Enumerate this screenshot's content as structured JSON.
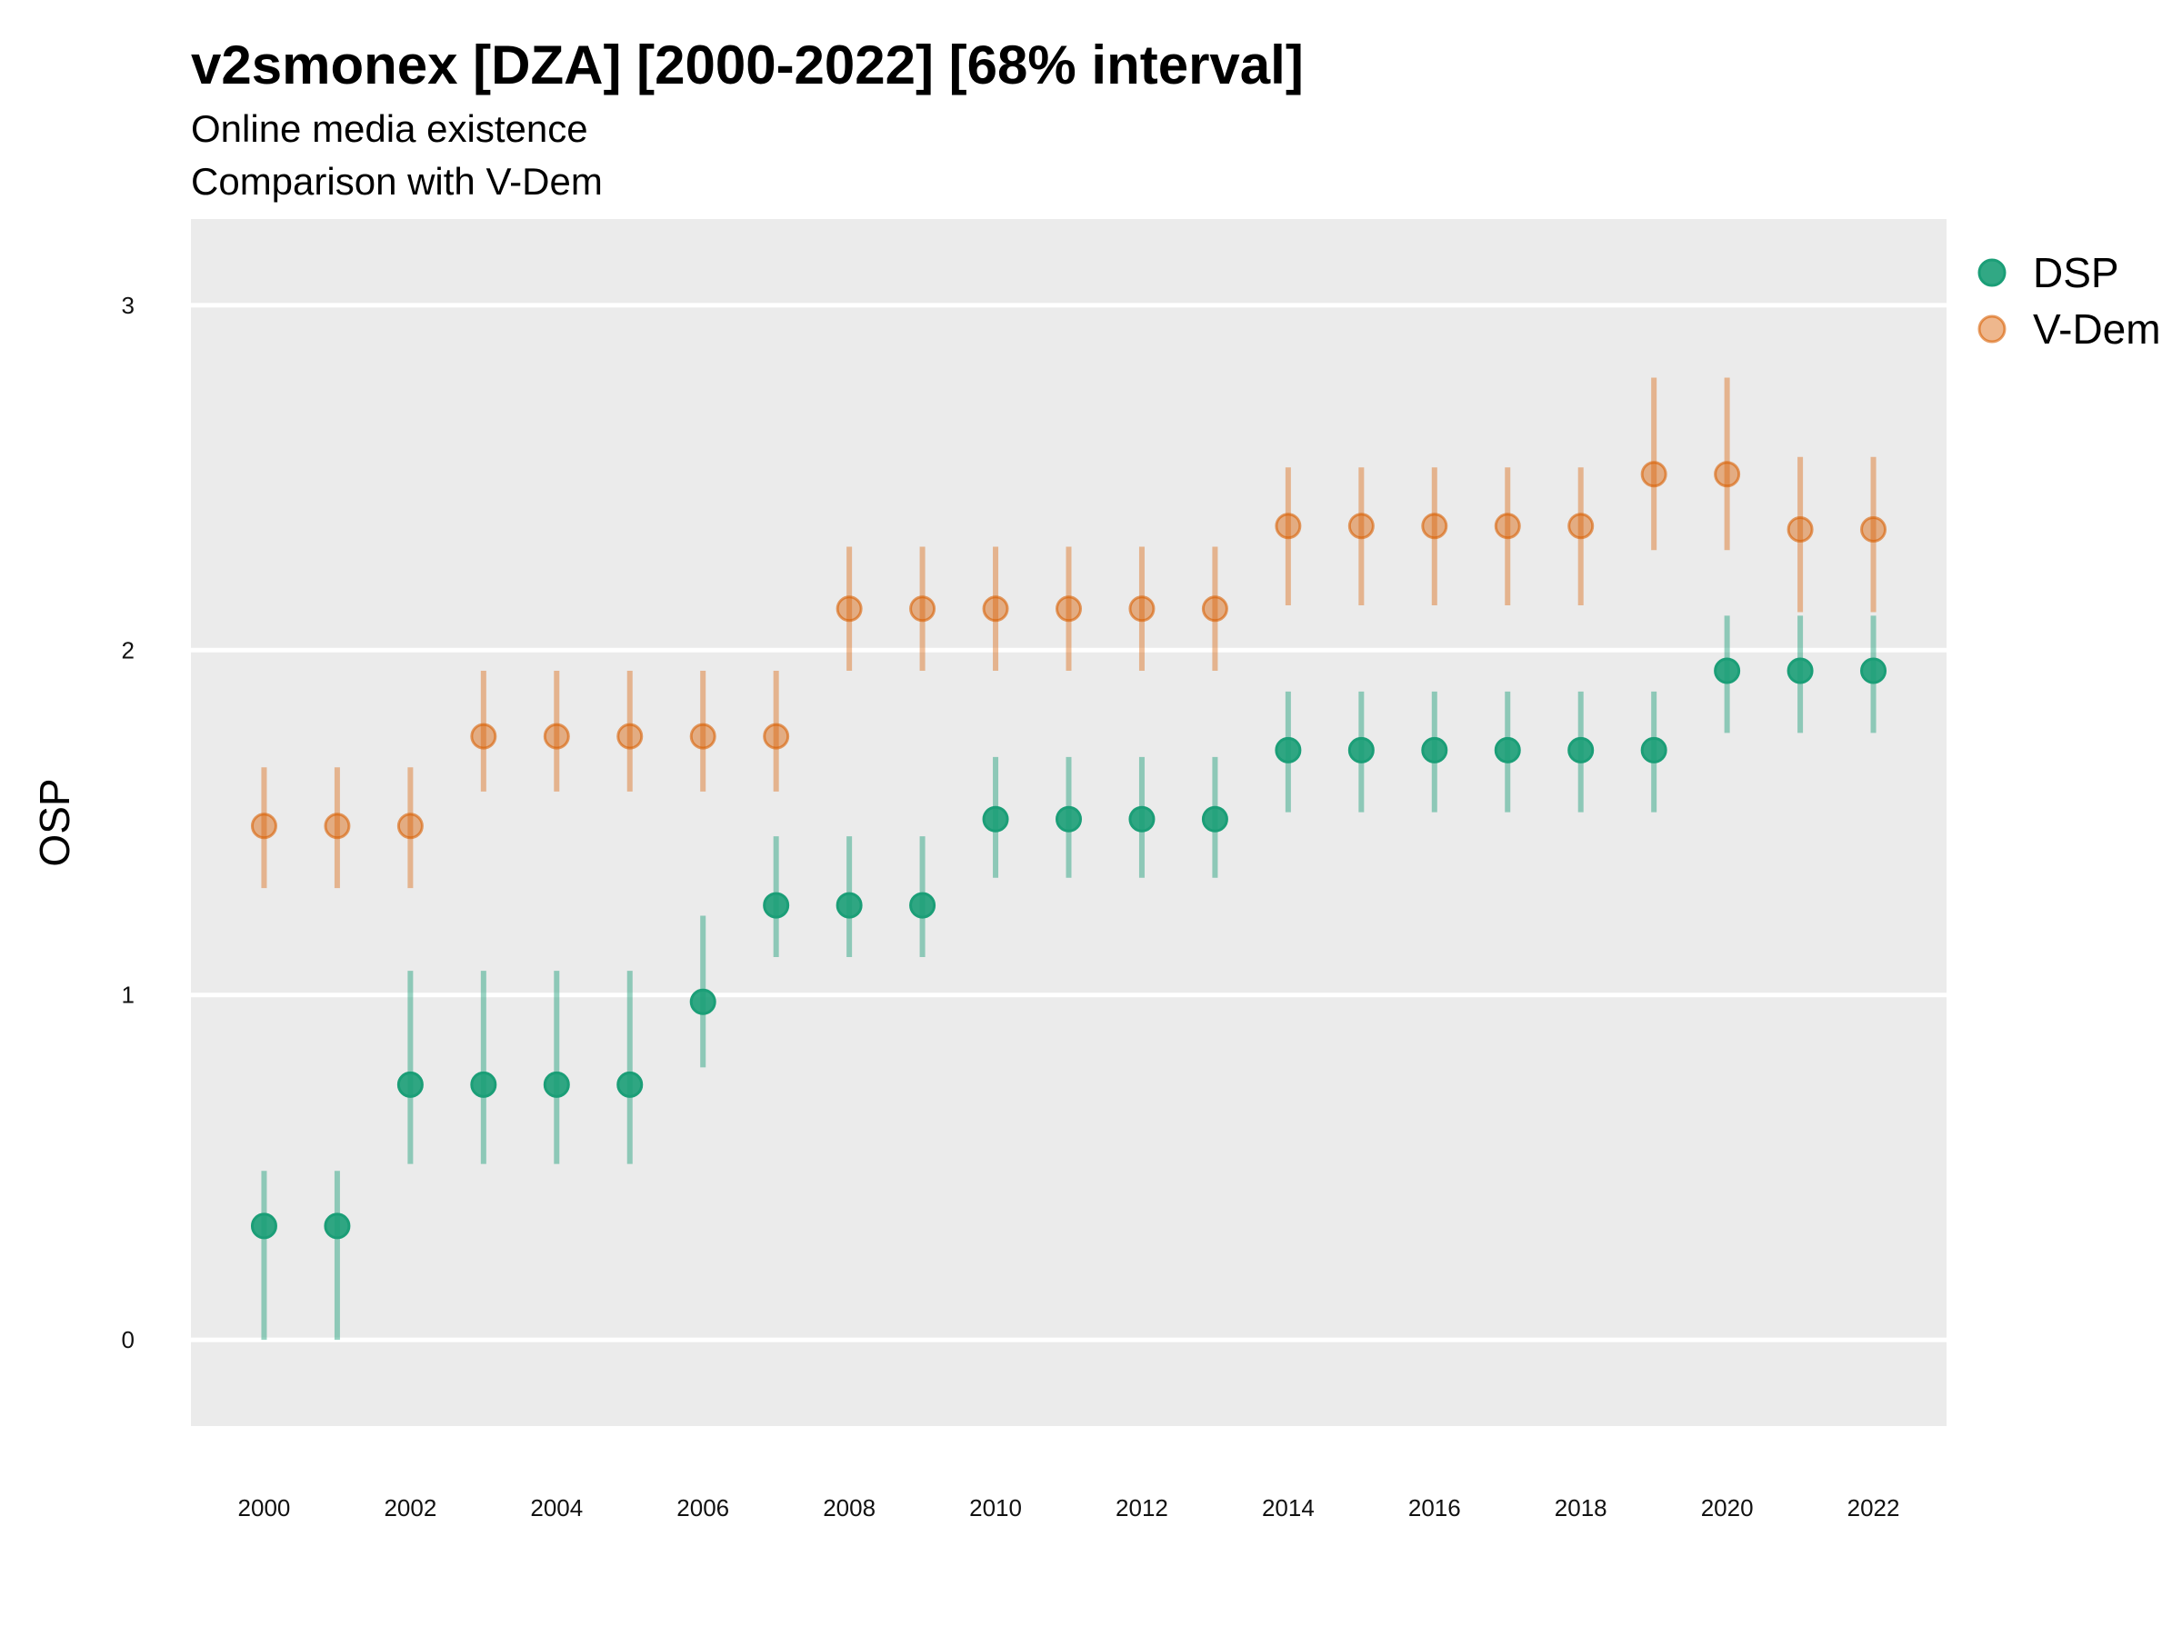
{
  "chart_data": {
    "type": "scatter",
    "title": "v2smonex [DZA] [2000-2022] [68% interval]",
    "subtitle_lines": [
      "Online media existence",
      "Comparison with V-Dem"
    ],
    "xlabel": "",
    "ylabel": "OSP",
    "x": [
      2000,
      2001,
      2002,
      2003,
      2004,
      2005,
      2006,
      2007,
      2008,
      2009,
      2010,
      2011,
      2012,
      2013,
      2014,
      2015,
      2016,
      2017,
      2018,
      2019,
      2020,
      2021,
      2022
    ],
    "x_ticks": [
      2000,
      2002,
      2004,
      2006,
      2008,
      2010,
      2012,
      2014,
      2016,
      2018,
      2020,
      2022
    ],
    "y_ticks": [
      0,
      1,
      2,
      3
    ],
    "xlim": [
      1999.0,
      2023.0
    ],
    "ylim": [
      -0.25,
      3.25
    ],
    "grid": true,
    "legend_position": "right",
    "series": [
      {
        "name": "DSP",
        "color": "#1b9e77",
        "point_alpha": 0.9,
        "interval_alpha": 0.45,
        "values": [
          0.33,
          0.33,
          0.74,
          0.74,
          0.74,
          0.74,
          0.98,
          1.26,
          1.26,
          1.26,
          1.51,
          1.51,
          1.51,
          1.51,
          1.71,
          1.71,
          1.71,
          1.71,
          1.71,
          1.71,
          1.94,
          1.94,
          1.94
        ],
        "lower": [
          0.0,
          0.0,
          0.51,
          0.51,
          0.51,
          0.51,
          0.79,
          1.11,
          1.11,
          1.11,
          1.34,
          1.34,
          1.34,
          1.34,
          1.53,
          1.53,
          1.53,
          1.53,
          1.53,
          1.53,
          1.76,
          1.76,
          1.76
        ],
        "upper": [
          0.49,
          0.49,
          1.07,
          1.07,
          1.07,
          1.07,
          1.23,
          1.46,
          1.46,
          1.46,
          1.69,
          1.69,
          1.69,
          1.69,
          1.88,
          1.88,
          1.88,
          1.88,
          1.88,
          1.88,
          2.1,
          2.1,
          2.1
        ]
      },
      {
        "name": "V-Dem",
        "color": "#d95f02",
        "point_alpha": 0.45,
        "interval_alpha": 0.4,
        "values": [
          1.49,
          1.49,
          1.49,
          1.75,
          1.75,
          1.75,
          1.75,
          1.75,
          2.12,
          2.12,
          2.12,
          2.12,
          2.12,
          2.12,
          2.36,
          2.36,
          2.36,
          2.36,
          2.36,
          2.51,
          2.51,
          2.35,
          2.35
        ],
        "lower": [
          1.31,
          1.31,
          1.31,
          1.59,
          1.59,
          1.59,
          1.59,
          1.59,
          1.94,
          1.94,
          1.94,
          1.94,
          1.94,
          1.94,
          2.13,
          2.13,
          2.13,
          2.13,
          2.13,
          2.29,
          2.29,
          2.11,
          2.11
        ],
        "upper": [
          1.66,
          1.66,
          1.66,
          1.94,
          1.94,
          1.94,
          1.94,
          1.94,
          2.3,
          2.3,
          2.3,
          2.3,
          2.3,
          2.3,
          2.53,
          2.53,
          2.53,
          2.53,
          2.53,
          2.79,
          2.79,
          2.56,
          2.56
        ]
      }
    ]
  }
}
